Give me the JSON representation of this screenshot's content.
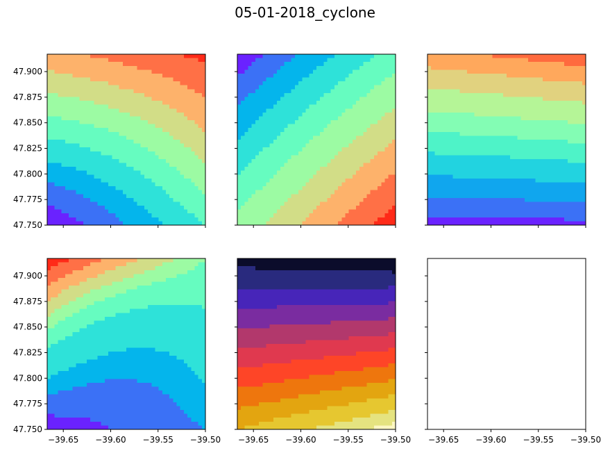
{
  "chart_data": {
    "type": "contour",
    "title": "05-01-2018_cyclone",
    "layout": "2x3 grid, shared axes",
    "xlim": [
      -39.667,
      -39.5
    ],
    "ylim": [
      47.75,
      47.917
    ],
    "x_ticks": [
      -39.65,
      -39.6,
      -39.55,
      -39.5
    ],
    "x_tick_labels": [
      "−39.65",
      "−39.60",
      "−39.55",
      "−39.50"
    ],
    "y_ticks": [
      47.75,
      47.775,
      47.8,
      47.825,
      47.85,
      47.875,
      47.9
    ],
    "y_tick_labels": [
      "47.750",
      "47.775",
      "47.800",
      "47.825",
      "47.850",
      "47.875",
      "47.900"
    ],
    "grid": false,
    "panels": [
      {
        "id": "row1-col1",
        "colormap": "rainbow",
        "colors": [
          "#6a22ff",
          "#3b71f6",
          "#04b5ec",
          "#2ee2d9",
          "#66fcc0",
          "#9cfba3",
          "#d2dd87",
          "#fdb26b",
          "#ff7046",
          "#ff2a18"
        ],
        "level_fractions": [
          0,
          0.09,
          0.19,
          0.28,
          0.38,
          0.48,
          0.58,
          0.68,
          0.79,
          0.9
        ],
        "field": {
          "corners": [
            0.75,
            0.93,
            0.0,
            0.38
          ],
          "mid": 0.43
        }
      },
      {
        "id": "row1-col2",
        "colormap": "rainbow",
        "colors": [
          "#6a22ff",
          "#3b71f6",
          "#04b5ec",
          "#2ee2d9",
          "#66fcc0",
          "#9cfba3",
          "#d2dd87",
          "#fdb26b",
          "#ff7046",
          "#ff2a18"
        ],
        "level_fractions": [
          0,
          0.07,
          0.16,
          0.26,
          0.37,
          0.48,
          0.6,
          0.71,
          0.82,
          0.93
        ],
        "field": {
          "corners": [
            0.0,
            0.42,
            0.52,
            1.0
          ],
          "mid": 0.5
        }
      },
      {
        "id": "row1-col3",
        "colormap": "rainbow",
        "colors": [
          "#6a22ff",
          "#3b71f6",
          "#10a6ee",
          "#22d3e0",
          "#4ef3c8",
          "#83fdb4",
          "#b5f597",
          "#e1d27f",
          "#ffa85c",
          "#ff6a3e"
        ],
        "level_fractions": [
          0,
          0.05,
          0.15,
          0.26,
          0.38,
          0.49,
          0.6,
          0.72,
          0.83,
          0.93
        ],
        "field": {
          "corners": [
            0.9,
            1.0,
            0.0,
            0.02
          ],
          "mid": 0.47
        }
      },
      {
        "id": "row2-col1",
        "colormap": "rainbow",
        "colors": [
          "#6a22ff",
          "#3b71f6",
          "#04b5ec",
          "#2ee2d9",
          "#66fcc0",
          "#9cfba3",
          "#d2dd87",
          "#fdb26b",
          "#ff7046",
          "#ff2a18"
        ],
        "level_fractions": [
          0,
          0.08,
          0.2,
          0.3,
          0.47,
          0.58,
          0.66,
          0.75,
          0.84,
          0.93
        ],
        "field": {
          "corners": [
            1.0,
            0.58,
            0.0,
            0.2
          ],
          "mid": 0.2
        }
      },
      {
        "id": "row2-col2",
        "colormap": "inferno-like",
        "colors": [
          "#0b0c2b",
          "#292a7e",
          "#4725b9",
          "#7a2ca0",
          "#b2386c",
          "#e0394f",
          "#fe4527",
          "#ee760d",
          "#e3a510",
          "#e6c730",
          "#e5e380",
          "#fdf7c2"
        ],
        "level_fractions": [
          0,
          0.08,
          0.17,
          0.26,
          0.35,
          0.44,
          0.53,
          0.62,
          0.71,
          0.8,
          0.89,
          0.96
        ],
        "field": {
          "corners": [
            0.04,
            0.0,
            0.8,
            1.0
          ],
          "mid": 0.45
        }
      },
      {
        "id": "row2-col3",
        "colormap": "none",
        "empty": true
      }
    ]
  }
}
